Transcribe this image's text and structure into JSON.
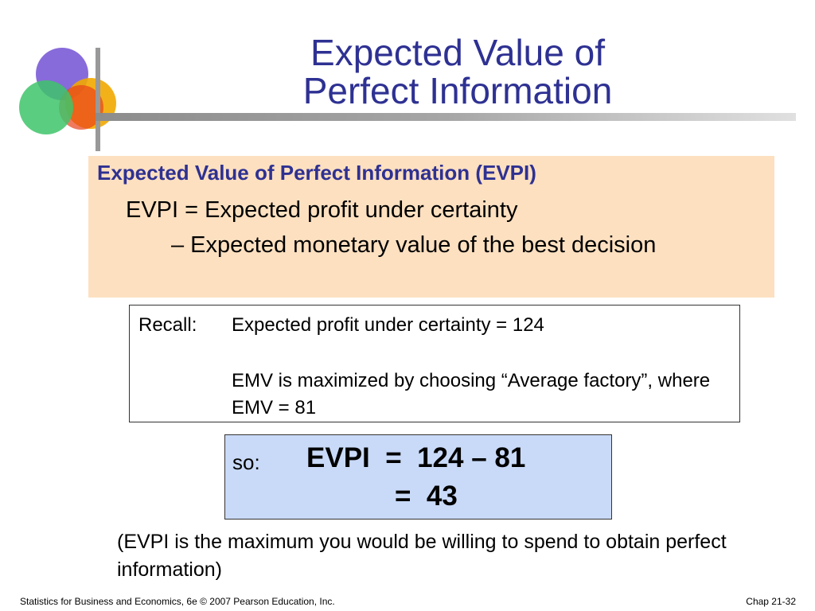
{
  "slide": {
    "title_line1": "Expected Value of",
    "title_line2": "Perfect Information"
  },
  "definition": {
    "heading": "Expected Value of Perfect Information (EVPI)",
    "line1": "EVPI = Expected profit under certainty",
    "line2": "– Expected monetary value of the best decision"
  },
  "recall": {
    "label": "Recall:",
    "line1": "Expected profit under certainty = 124",
    "line2": "EMV is maximized by choosing “Average factory”, where EMV = 81"
  },
  "calculation": {
    "label": "so:",
    "line1": "EVPI  =  124 – 81",
    "line2": "=  43"
  },
  "note": "(EVPI is the maximum you would be willing to spend to obtain perfect information)",
  "footer": {
    "left": "Statistics for Business and Economics, 6e © 2007 Pearson Education, Inc.",
    "right": "Chap 21-32"
  },
  "colors": {
    "title": "#2e3192",
    "definition_box": "#fde0c0",
    "calculation_box": "#c9daf8"
  },
  "icons": {
    "logo": "overlapping-circles-icon"
  }
}
